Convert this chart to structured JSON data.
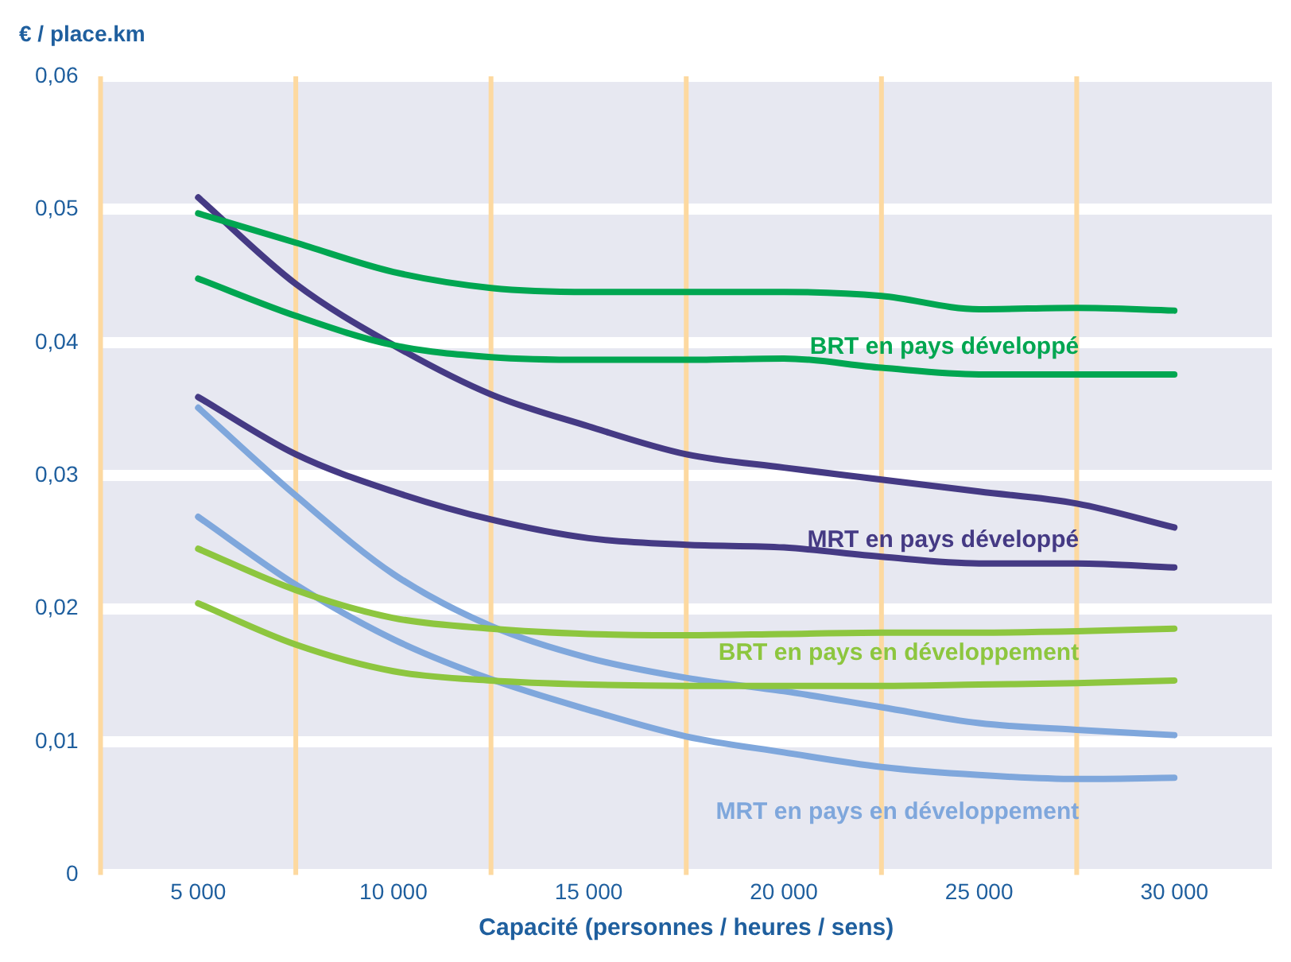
{
  "chart_data": {
    "type": "line",
    "ylabel": "€ / place.km",
    "xlabel": "Capacité (personnes / heures / sens)",
    "x": [
      5000,
      7500,
      10000,
      12500,
      15000,
      17500,
      20000,
      22500,
      25000,
      27500,
      30000
    ],
    "xlim": [
      2500,
      32500
    ],
    "xticks": [
      {
        "value": 5000,
        "label": "5 000"
      },
      {
        "value": 10000,
        "label": "10 000"
      },
      {
        "value": 15000,
        "label": "15 000"
      },
      {
        "value": 20000,
        "label": "20 000"
      },
      {
        "value": 25000,
        "label": "25 000"
      },
      {
        "value": 30000,
        "label": "30 000"
      }
    ],
    "ylim": [
      0,
      0.06
    ],
    "yticks": [
      0,
      {
        "value": 0.01,
        "label": "0,01"
      },
      {
        "value": 0.02,
        "label": "0,02"
      },
      {
        "value": 0.03,
        "label": "0,03"
      },
      {
        "value": 0.04,
        "label": "0,04"
      },
      {
        "value": 0.05,
        "label": "0,05"
      },
      {
        "value": 0.06,
        "label": "0,06"
      }
    ],
    "grid": "y",
    "legend": false,
    "marker": "none",
    "line_style": "solid",
    "series": [
      {
        "color": "#00a651",
        "values": [
          0.0497,
          0.0475,
          0.0453,
          0.0441,
          0.0438,
          0.0438,
          0.0438,
          0.0435,
          0.0425,
          0.0426,
          0.0424
        ]
      },
      {
        "name": "BRT en pays développé",
        "color": "#00a651",
        "values": [
          0.0448,
          0.042,
          0.0398,
          0.0389,
          0.0387,
          0.0387,
          0.0388,
          0.0381,
          0.0376,
          0.0376,
          0.0376
        ]
      },
      {
        "color": "#453a84",
        "values": [
          0.0509,
          0.0444,
          0.0398,
          0.0361,
          0.0337,
          0.0316,
          0.0306,
          0.0297,
          0.0288,
          0.0279,
          0.0261
        ]
      },
      {
        "name": "MRT en pays développé",
        "color": "#453a84",
        "values": [
          0.0359,
          0.0316,
          0.0288,
          0.0267,
          0.0253,
          0.0248,
          0.0246,
          0.0239,
          0.0234,
          0.0234,
          0.0231
        ]
      },
      {
        "color": "#8dc63f",
        "values": [
          0.0245,
          0.0214,
          0.0193,
          0.0185,
          0.0181,
          0.018,
          0.0181,
          0.0182,
          0.0182,
          0.0183,
          0.0185
        ]
      },
      {
        "name": "BRT en pays en développement",
        "color": "#8dc63f",
        "values": [
          0.0204,
          0.0173,
          0.0153,
          0.0146,
          0.0143,
          0.0142,
          0.0142,
          0.0142,
          0.0143,
          0.0144,
          0.0146
        ]
      },
      {
        "color": "#7fa7dc",
        "values": [
          0.0351,
          0.0285,
          0.0226,
          0.0187,
          0.0163,
          0.0148,
          0.0138,
          0.0126,
          0.0114,
          0.0109,
          0.0105
        ]
      },
      {
        "name": "MRT en pays en développement",
        "color": "#7fa7dc",
        "values": [
          0.0269,
          0.0218,
          0.0177,
          0.0147,
          0.0124,
          0.0104,
          0.0092,
          0.0081,
          0.0075,
          0.0072,
          0.0073
        ]
      }
    ],
    "ref_lines": [
      {
        "axis": "x",
        "value": 2500,
        "color": "#fdd9a0"
      },
      {
        "axis": "x",
        "value": 7500,
        "color": "#fdd9a0"
      },
      {
        "axis": "x",
        "value": 12500,
        "color": "#fdd9a0"
      },
      {
        "axis": "x",
        "value": 17500,
        "color": "#fdd9a0"
      },
      {
        "axis": "x",
        "value": 22500,
        "color": "#fdd9a0"
      },
      {
        "axis": "x",
        "value": 27500,
        "color": "#fdd9a0"
      }
    ]
  }
}
